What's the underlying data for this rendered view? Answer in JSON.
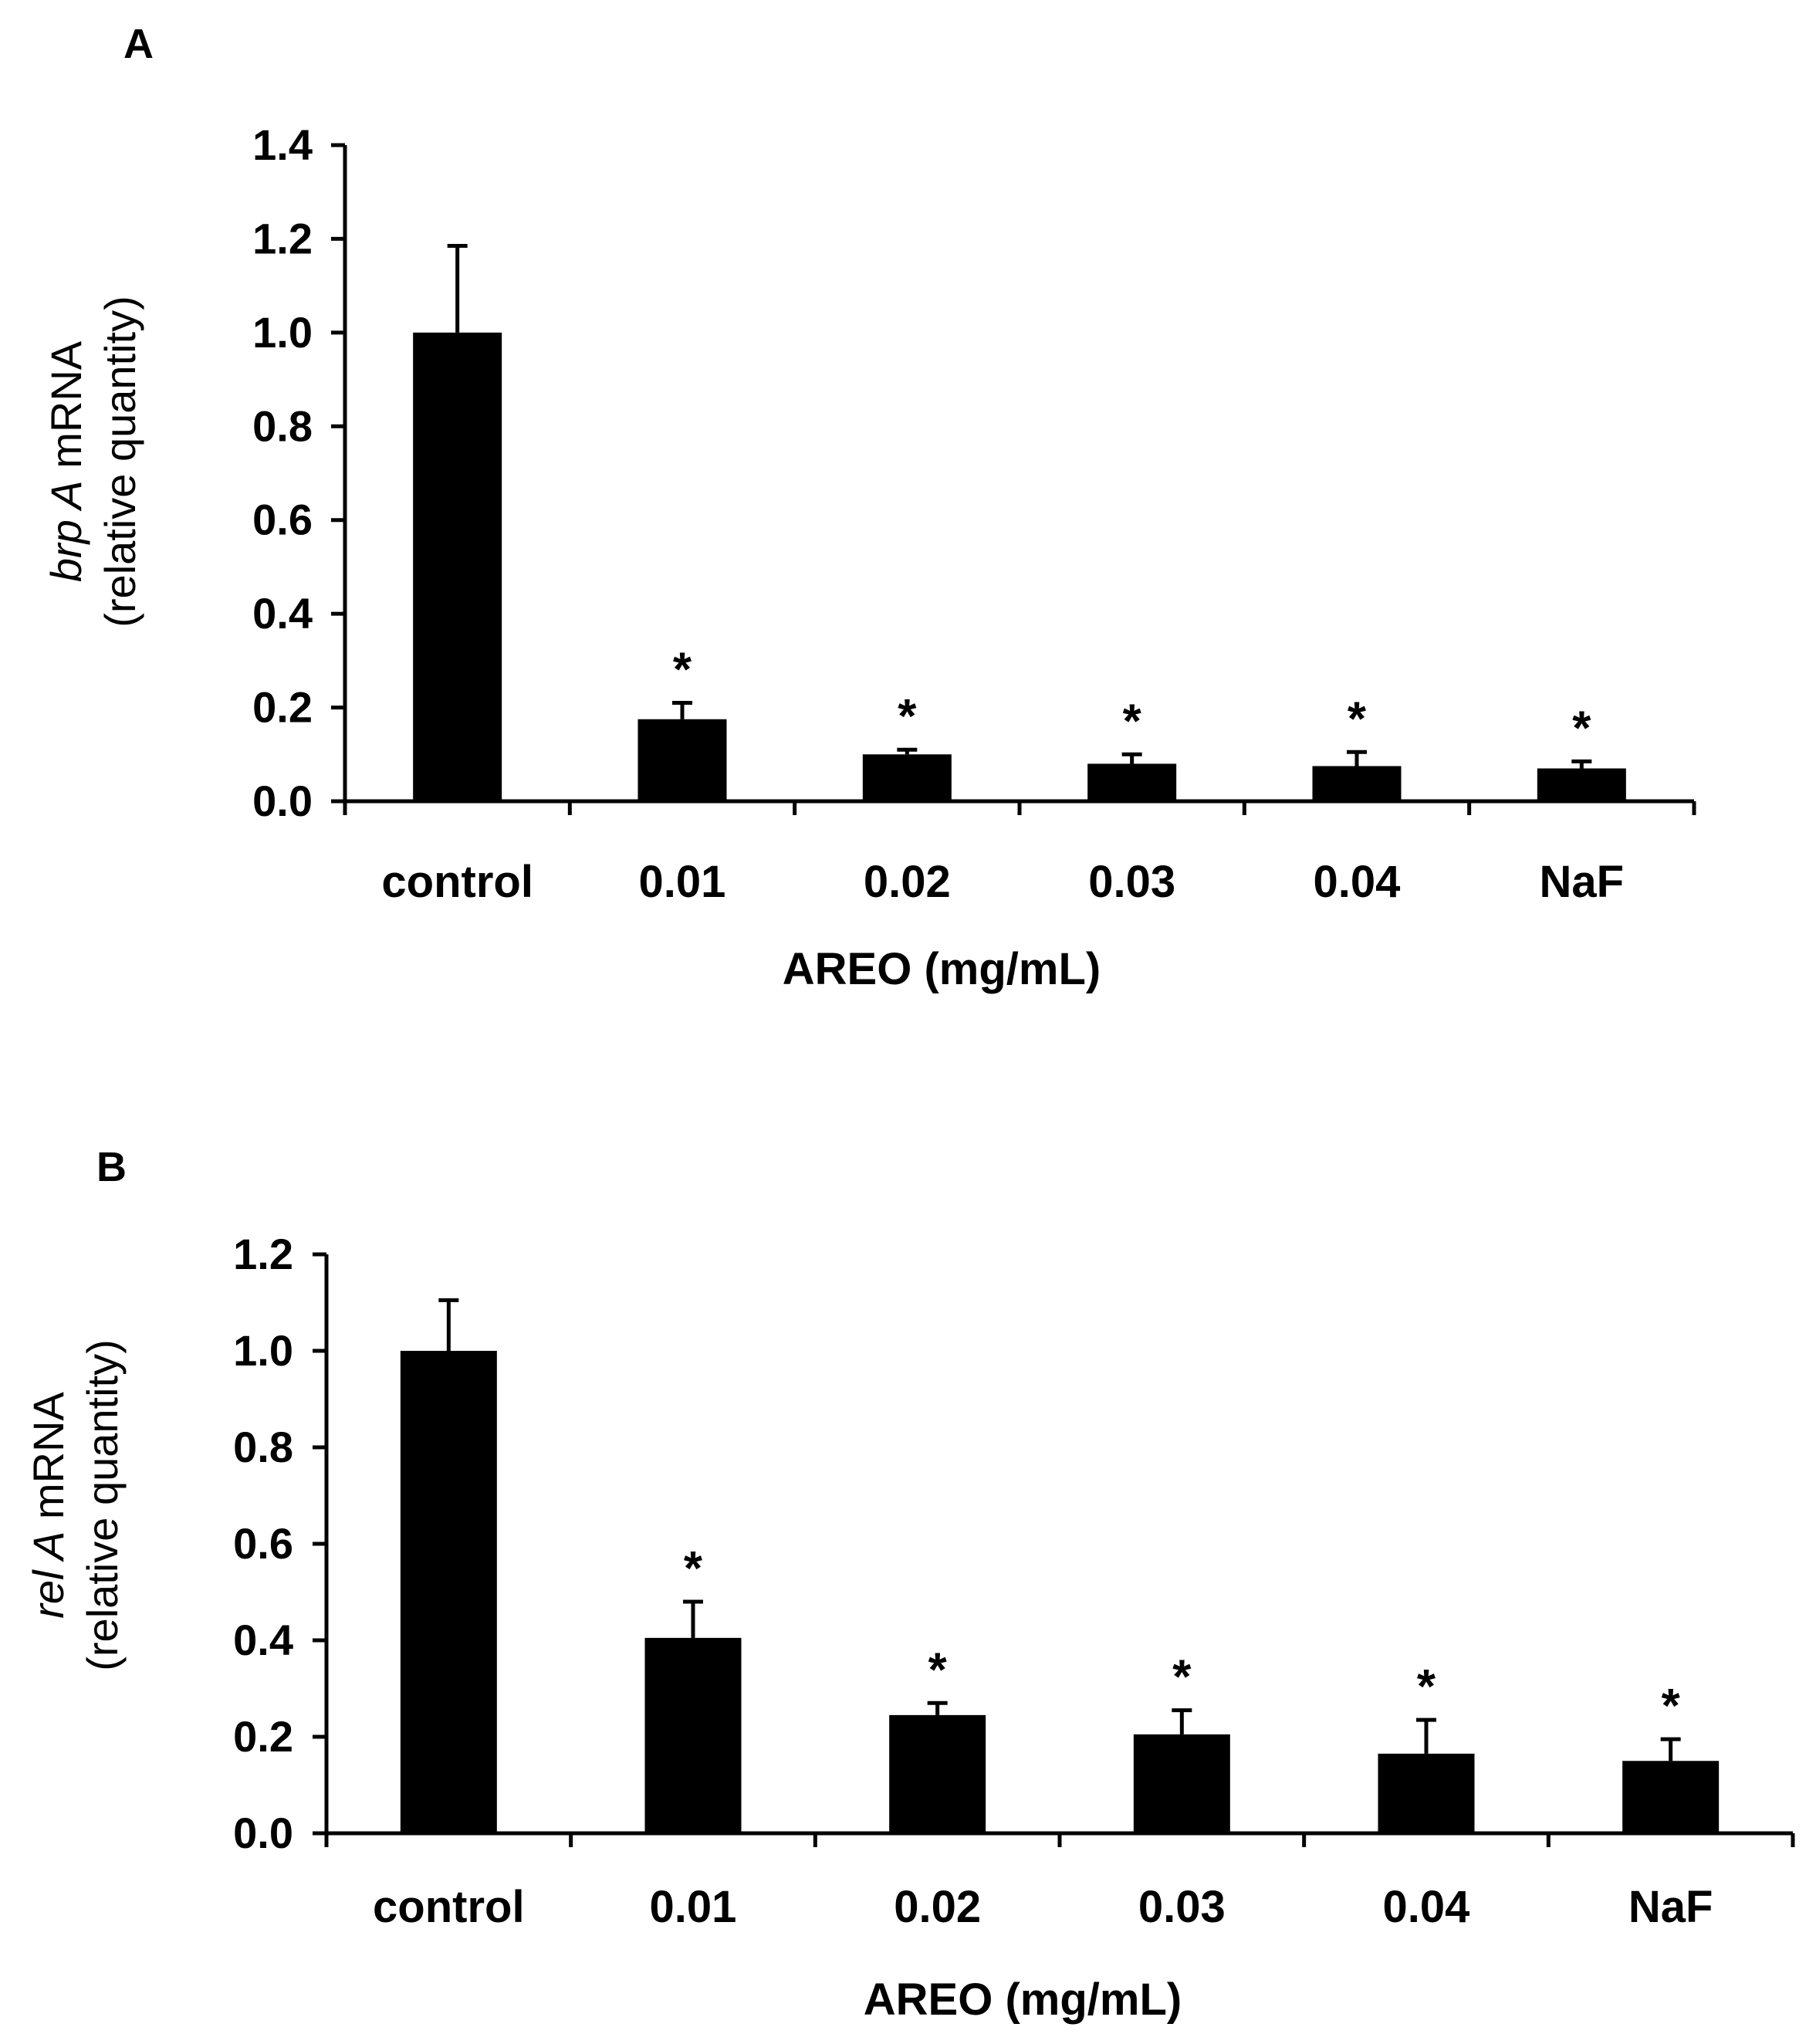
{
  "chart_data": [
    {
      "type": "bar",
      "panel_label": "A",
      "categories": [
        "control",
        "0.01",
        "0.02",
        "0.03",
        "0.04",
        "NaF"
      ],
      "values": [
        1.0,
        0.175,
        0.1,
        0.08,
        0.075,
        0.07
      ],
      "errors": [
        0.185,
        0.035,
        0.01,
        0.02,
        0.03,
        0.015
      ],
      "significance": [
        "",
        "*",
        "*",
        "*",
        "*",
        "*"
      ],
      "ylim": [
        0,
        1.4
      ],
      "yticks": [
        "0.0",
        "0.2",
        "0.4",
        "0.6",
        "0.8",
        "1.0",
        "1.2",
        "1.4"
      ],
      "ylabel_gene": "brp A",
      "ylabel_suffix": " mRNA",
      "ylabel_line2": "(relative quantity)",
      "xlabel": "AREO (mg/mL)",
      "bar_color": "#000000"
    },
    {
      "type": "bar",
      "panel_label": "B",
      "categories": [
        "control",
        "0.01",
        "0.02",
        "0.03",
        "0.04",
        "NaF"
      ],
      "values": [
        1.0,
        0.405,
        0.245,
        0.205,
        0.165,
        0.15
      ],
      "errors": [
        0.105,
        0.075,
        0.025,
        0.05,
        0.07,
        0.045
      ],
      "significance": [
        "",
        "*",
        "*",
        "*",
        "*",
        "*"
      ],
      "ylim": [
        0,
        1.2
      ],
      "yticks": [
        "0.0",
        "0.2",
        "0.4",
        "0.6",
        "0.8",
        "1.0",
        "1.2"
      ],
      "ylabel_gene": "rel A",
      "ylabel_suffix": " mRNA",
      "ylabel_line2": "(relative quantity)",
      "xlabel": "AREO (mg/mL)",
      "bar_color": "#000000"
    }
  ]
}
